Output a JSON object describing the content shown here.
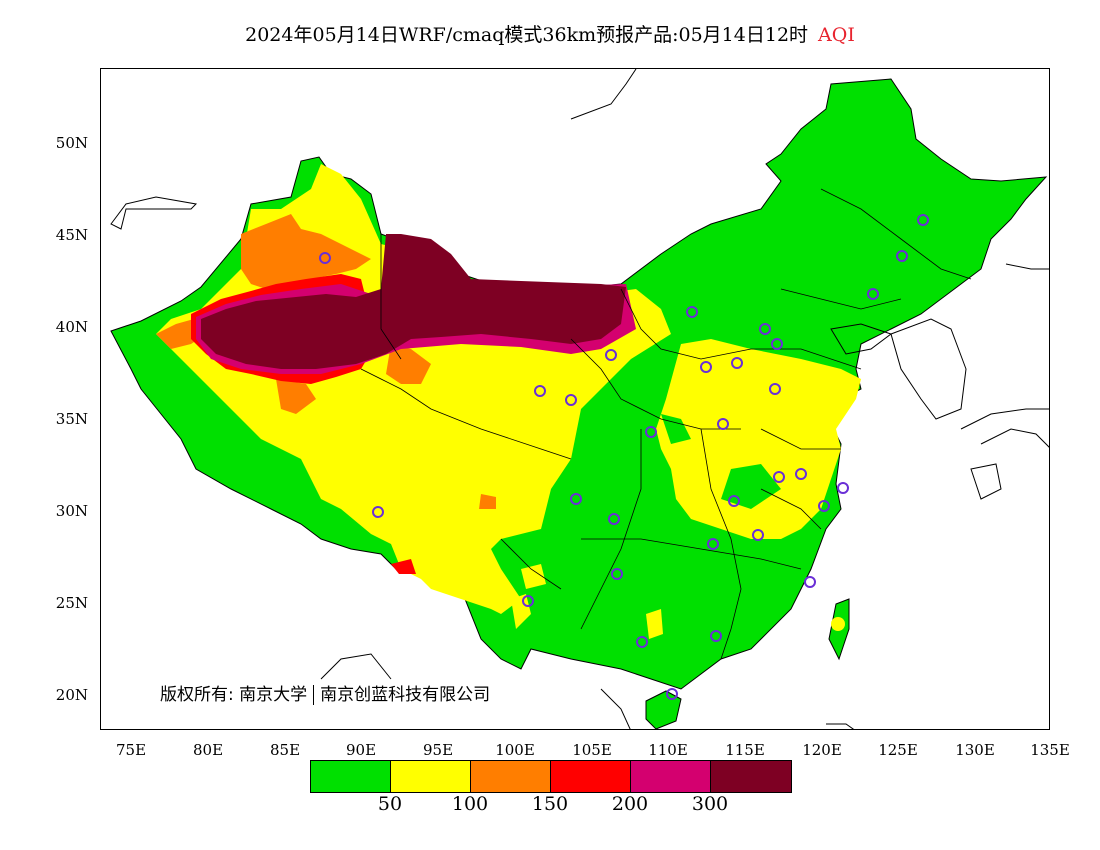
{
  "title": {
    "main": "2024年05月14日WRF/cmaq模式36km预报产品:05月14日12时",
    "variable": "AQI"
  },
  "copyright": {
    "prefix": "版权所有:",
    "org1": "南京大学",
    "org2": "南京创蓝科技有限公司"
  },
  "axes": {
    "lat_ticks": [
      "50N",
      "45N",
      "40N",
      "35N",
      "30N",
      "25N",
      "20N"
    ],
    "lon_ticks": [
      "75E",
      "80E",
      "85E",
      "90E",
      "95E",
      "100E",
      "105E",
      "110E",
      "115E",
      "120E",
      "125E",
      "130E",
      "135E"
    ]
  },
  "legend": {
    "colors": [
      "#00e000",
      "#ffff00",
      "#ff7e00",
      "#ff0000",
      "#d4006f",
      "#7e0023"
    ],
    "labels": [
      "50",
      "100",
      "150",
      "200",
      "300"
    ]
  },
  "map_colors": {
    "good": "#00e000",
    "moderate": "#ffff00",
    "usg": "#ff7e00",
    "unhealthy": "#ff0000",
    "very_unhealthy": "#d4006f",
    "hazardous": "#7e0023",
    "station": "#6a2fd6"
  }
}
